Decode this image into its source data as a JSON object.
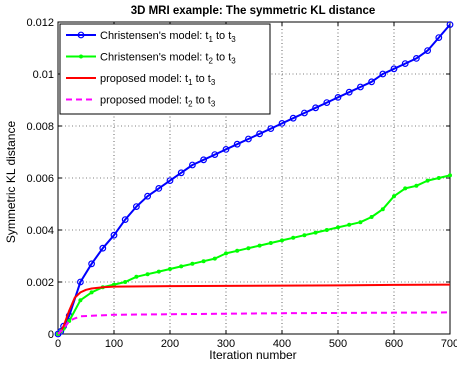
{
  "chart_data": {
    "type": "line",
    "title": "3D MRI example: The symmetric KL distance",
    "xlabel": "Iteration number",
    "ylabel": "Symmetric KL distance",
    "xlim": [
      0,
      700
    ],
    "ylim": [
      0,
      0.012
    ],
    "xticks": [
      0,
      100,
      200,
      300,
      400,
      500,
      600,
      700
    ],
    "xtick_labels": [
      "0",
      "100",
      "200",
      "300",
      "400",
      "500",
      "600",
      "700"
    ],
    "yticks": [
      0,
      0.002,
      0.004,
      0.006,
      0.008,
      0.01,
      0.012
    ],
    "ytick_labels": [
      "0",
      "0.002",
      "0.004",
      "0.006",
      "0.008",
      "0.01",
      "0.012"
    ],
    "grid": true,
    "legend_position": "top-left",
    "series": [
      {
        "name": "Christensen's model: t1 to t3",
        "legend_main": "Christensen's model: t",
        "legend_sub1": "1",
        "legend_mid": " to t",
        "legend_sub2": "3",
        "color": "#0000ff",
        "line_style": "solid",
        "marker": "circle",
        "x": [
          0,
          5,
          10,
          20,
          40,
          60,
          80,
          100,
          120,
          140,
          160,
          180,
          200,
          220,
          240,
          260,
          280,
          300,
          320,
          340,
          360,
          380,
          400,
          420,
          440,
          460,
          480,
          500,
          520,
          540,
          560,
          580,
          600,
          620,
          640,
          660,
          680,
          700
        ],
        "y": [
          0,
          0.0001,
          0.0003,
          0.0007,
          0.002,
          0.0027,
          0.0033,
          0.0038,
          0.0044,
          0.0049,
          0.0053,
          0.0056,
          0.0059,
          0.0062,
          0.0065,
          0.0067,
          0.0069,
          0.0071,
          0.0073,
          0.0075,
          0.0077,
          0.0079,
          0.0081,
          0.0083,
          0.0085,
          0.0087,
          0.0089,
          0.0091,
          0.0093,
          0.0095,
          0.0097,
          0.01,
          0.0102,
          0.0104,
          0.0106,
          0.0109,
          0.0114,
          0.0119
        ]
      },
      {
        "name": "Christensen's model: t2 to t3",
        "legend_main": "Christensen's model: t",
        "legend_sub1": "2",
        "legend_mid": " to t",
        "legend_sub2": "3",
        "color": "#00ff00",
        "line_style": "solid",
        "marker": "dot",
        "x": [
          0,
          5,
          10,
          20,
          40,
          60,
          80,
          100,
          120,
          140,
          160,
          180,
          200,
          220,
          240,
          260,
          280,
          300,
          320,
          340,
          360,
          380,
          400,
          420,
          440,
          460,
          480,
          500,
          520,
          540,
          560,
          580,
          600,
          620,
          640,
          660,
          680,
          700
        ],
        "y": [
          0,
          0.0001,
          0.0002,
          0.0005,
          0.0013,
          0.0016,
          0.0018,
          0.0019,
          0.002,
          0.0022,
          0.0023,
          0.0024,
          0.0025,
          0.0026,
          0.0027,
          0.0028,
          0.0029,
          0.0031,
          0.0032,
          0.0033,
          0.0034,
          0.0035,
          0.0036,
          0.0037,
          0.0038,
          0.0039,
          0.004,
          0.0041,
          0.0042,
          0.0043,
          0.0045,
          0.0048,
          0.0053,
          0.0056,
          0.0057,
          0.0059,
          0.006,
          0.0061
        ]
      },
      {
        "name": "proposed model: t1 to t3",
        "legend_main": "proposed model: t",
        "legend_sub1": "1",
        "legend_mid": " to t",
        "legend_sub2": "3",
        "color": "#ff0000",
        "line_style": "solid",
        "marker": "none",
        "x": [
          0,
          5,
          10,
          20,
          30,
          40,
          50,
          60,
          80,
          100,
          150,
          200,
          300,
          400,
          500,
          600,
          700
        ],
        "y": [
          0,
          0.0001,
          0.0003,
          0.0009,
          0.0014,
          0.0016,
          0.0017,
          0.00175,
          0.0018,
          0.00182,
          0.00183,
          0.00184,
          0.00185,
          0.00186,
          0.00187,
          0.00189,
          0.0019
        ]
      },
      {
        "name": "proposed model: t2 to t3",
        "legend_main": "proposed model: t",
        "legend_sub1": "2",
        "legend_mid": " to t",
        "legend_sub2": "3",
        "color": "#ff00ff",
        "line_style": "dashed",
        "marker": "none",
        "x": [
          0,
          5,
          10,
          20,
          30,
          40,
          60,
          100,
          200,
          300,
          400,
          500,
          600,
          700
        ],
        "y": [
          0,
          0.0001,
          0.0002,
          0.0005,
          0.0006,
          0.00068,
          0.0007,
          0.00074,
          0.00076,
          0.00078,
          0.0008,
          0.00081,
          0.00082,
          0.00083
        ]
      }
    ]
  }
}
